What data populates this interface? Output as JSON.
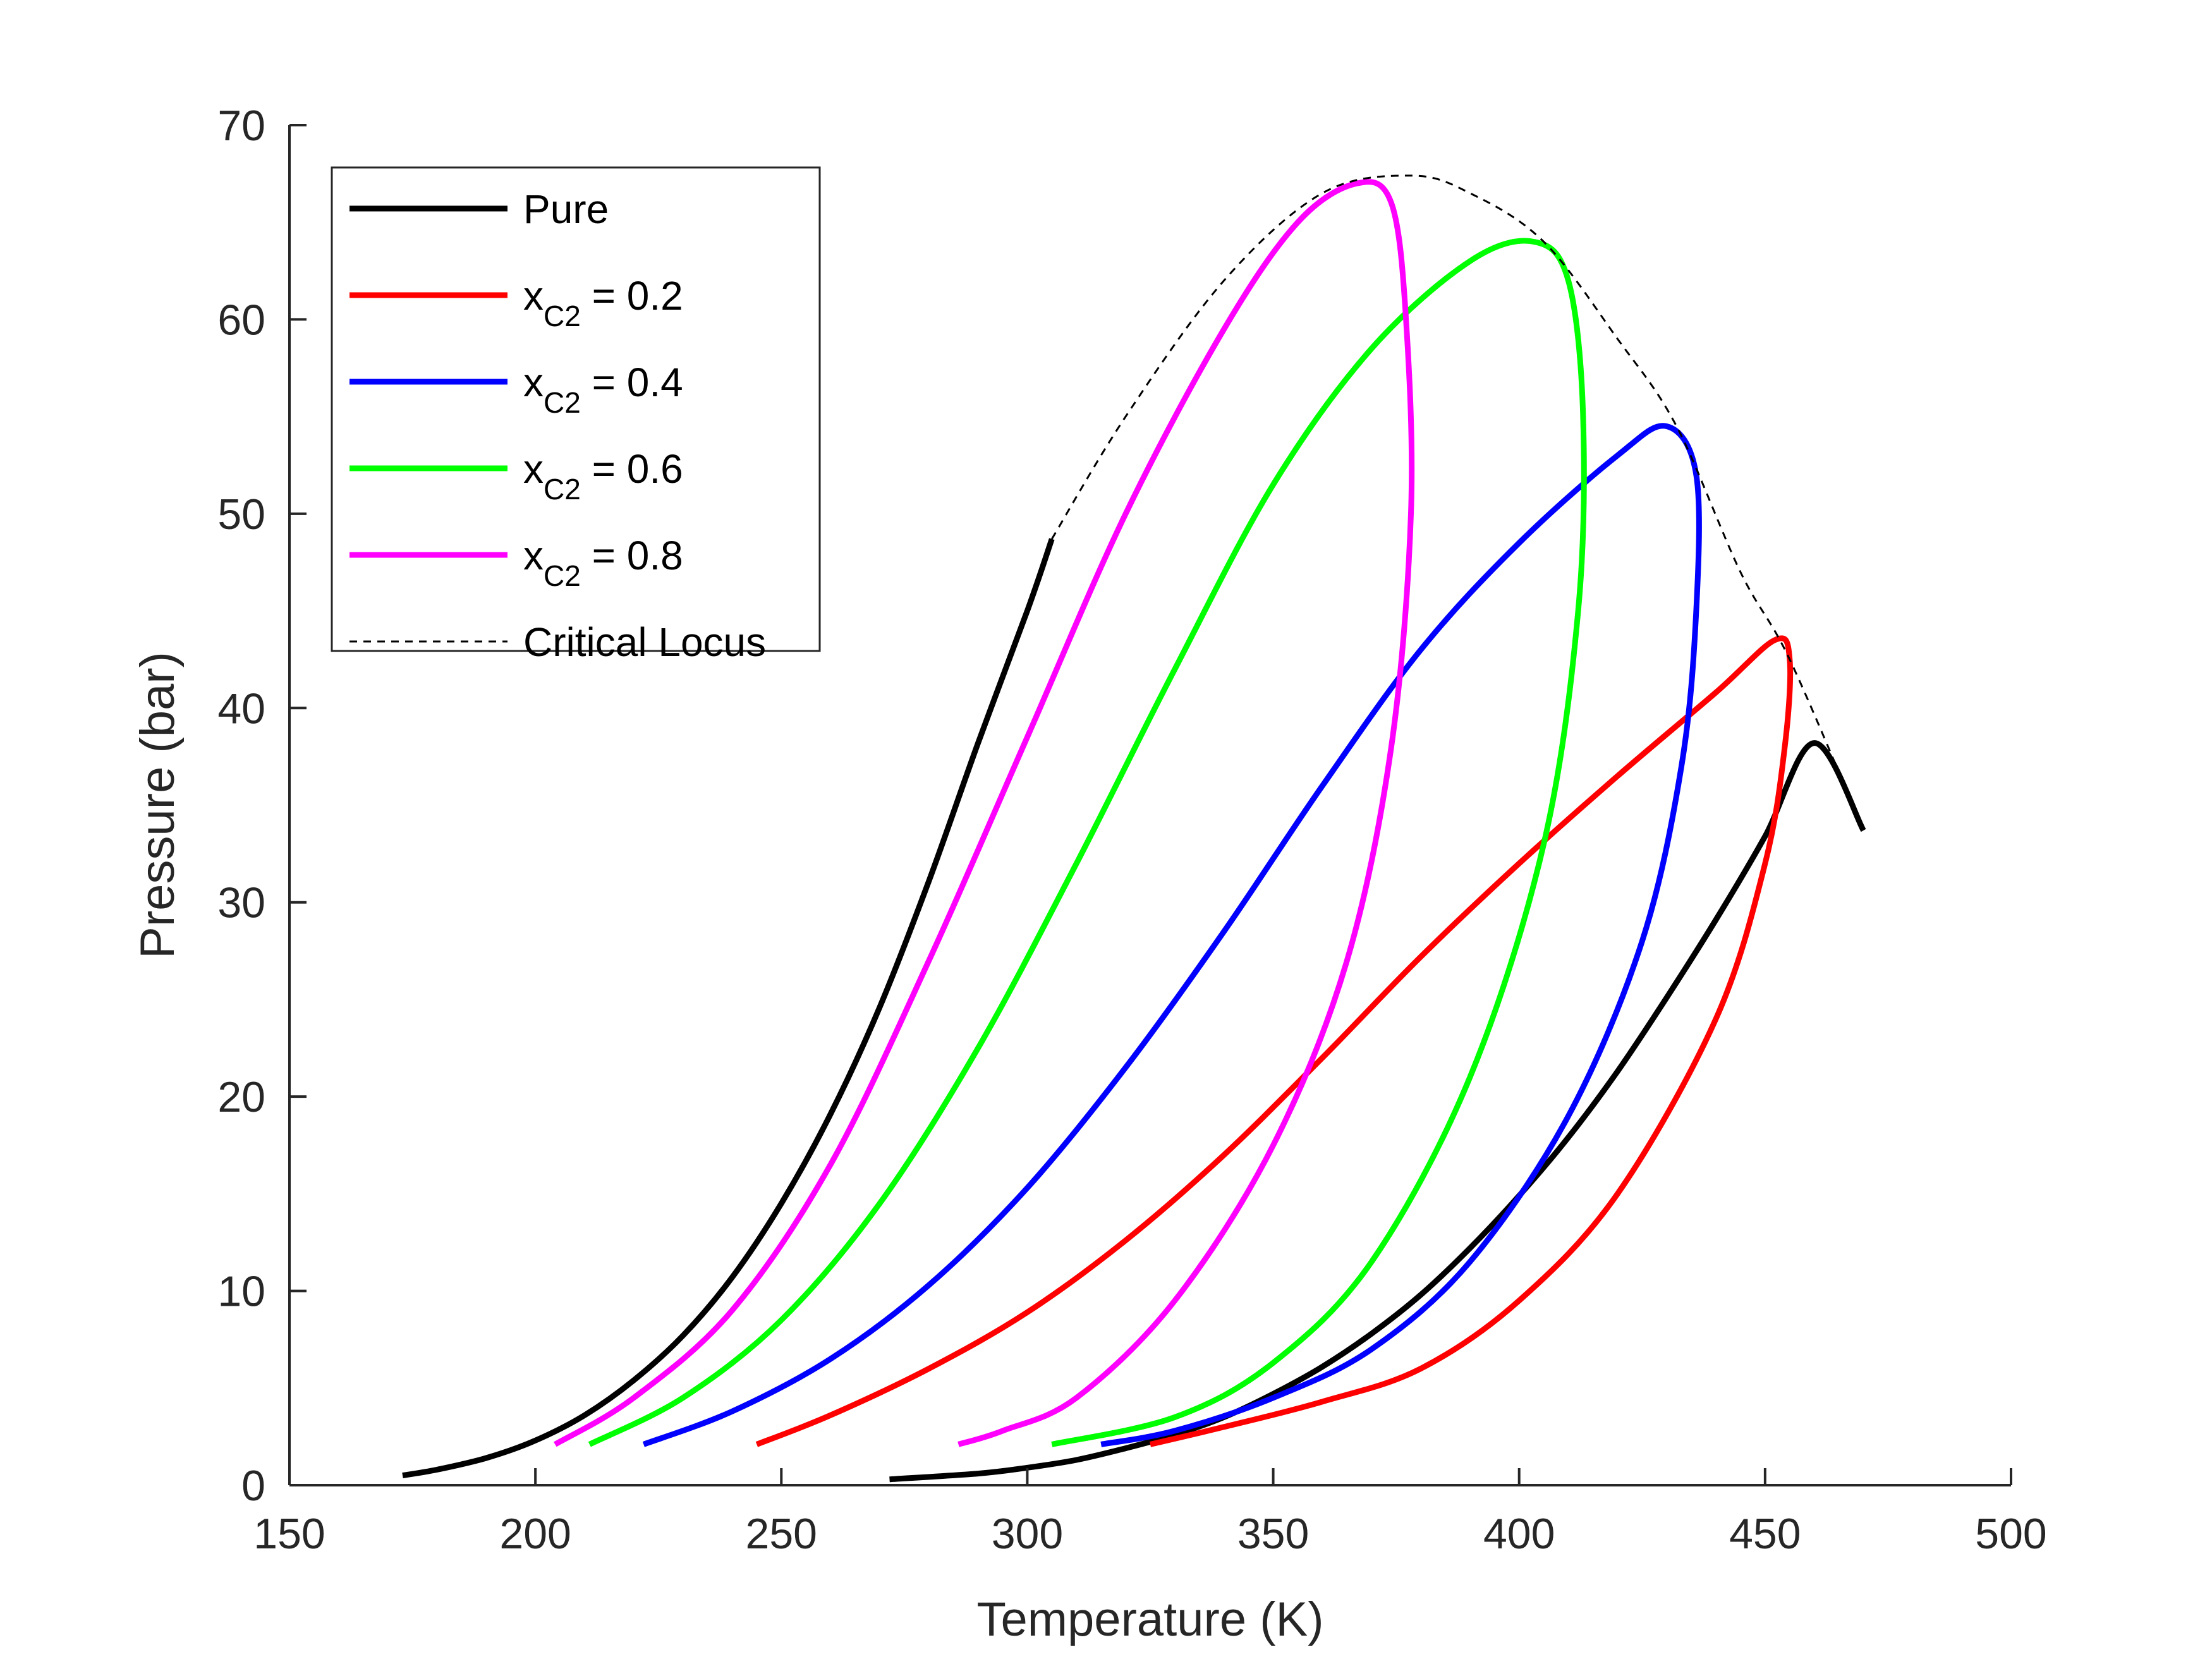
{
  "chart_data": {
    "type": "line",
    "title": "",
    "xlabel": "Temperature (K)",
    "ylabel": "Pressure (bar)",
    "xlim": [
      150,
      500
    ],
    "ylim": [
      0,
      70
    ],
    "xticks": [
      150,
      200,
      250,
      300,
      350,
      400,
      450,
      500
    ],
    "yticks": [
      0,
      10,
      20,
      30,
      40,
      50,
      60,
      70
    ],
    "xtick_labels": [
      "150",
      "200",
      "250",
      "300",
      "350",
      "400",
      "450",
      "500"
    ],
    "ytick_labels": [
      "0",
      "10",
      "20",
      "30",
      "40",
      "50",
      "60",
      "70"
    ],
    "grid": false,
    "legend_position": "top-left",
    "series": [
      {
        "name": "Pure",
        "color": "#000000",
        "style": "solid",
        "segments": [
          [
            [
              173,
              0.5
            ],
            [
              180,
              0.8
            ],
            [
              190,
              1.4
            ],
            [
              200,
              2.3
            ],
            [
              210,
              3.6
            ],
            [
              220,
              5.4
            ],
            [
              230,
              7.7
            ],
            [
              240,
              10.7
            ],
            [
              250,
              14.5
            ],
            [
              260,
              19.1
            ],
            [
              270,
              24.6
            ],
            [
              280,
              31.1
            ],
            [
              290,
              38.2
            ],
            [
              300,
              45.0
            ],
            [
              305,
              48.7
            ]
          ],
          [
            [
              272,
              0.3
            ],
            [
              290,
              0.6
            ],
            [
              300,
              0.9
            ],
            [
              310,
              1.3
            ],
            [
              320,
              1.9
            ],
            [
              330,
              2.6
            ],
            [
              340,
              3.5
            ],
            [
              350,
              4.7
            ],
            [
              360,
              6.1
            ],
            [
              370,
              7.8
            ],
            [
              380,
              9.8
            ],
            [
              390,
              12.2
            ],
            [
              400,
              14.9
            ],
            [
              410,
              17.9
            ],
            [
              420,
              21.3
            ],
            [
              430,
              25.1
            ],
            [
              440,
              29.1
            ],
            [
              450,
              33.4
            ],
            [
              460,
              38.2
            ],
            [
              470,
              33.7
            ]
          ]
        ]
      },
      {
        "name": "x_C2 = 0.2",
        "label_main": "x",
        "label_sub": "C2",
        "label_rest": " = 0.2",
        "color": "#ff0000",
        "style": "solid",
        "points": [
          [
            245,
            2.1
          ],
          [
            260,
            3.6
          ],
          [
            280,
            6.0
          ],
          [
            300,
            8.9
          ],
          [
            320,
            12.6
          ],
          [
            340,
            17.0
          ],
          [
            360,
            22.0
          ],
          [
            380,
            27.2
          ],
          [
            400,
            32.0
          ],
          [
            420,
            36.5
          ],
          [
            440,
            40.8
          ],
          [
            452,
            43.5
          ],
          [
            455,
            42.5
          ],
          [
            454,
            38.0
          ],
          [
            450,
            32.0
          ],
          [
            440,
            24.0
          ],
          [
            420,
            15.0
          ],
          [
            400,
            9.5
          ],
          [
            380,
            6.0
          ],
          [
            360,
            4.3
          ],
          [
            340,
            3.0
          ],
          [
            325,
            2.1
          ]
        ]
      },
      {
        "name": "x_C2 = 0.4",
        "label_main": "x",
        "label_sub": "C2",
        "label_rest": " = 0.4",
        "color": "#0000ff",
        "style": "solid",
        "points": [
          [
            222,
            2.1
          ],
          [
            240,
            3.8
          ],
          [
            260,
            6.5
          ],
          [
            280,
            10.3
          ],
          [
            300,
            15.3
          ],
          [
            320,
            21.5
          ],
          [
            340,
            28.5
          ],
          [
            360,
            36.0
          ],
          [
            380,
            43.0
          ],
          [
            400,
            48.5
          ],
          [
            420,
            53.0
          ],
          [
            430,
            54.5
          ],
          [
            436,
            52.0
          ],
          [
            436,
            45.0
          ],
          [
            433,
            37.0
          ],
          [
            425,
            28.0
          ],
          [
            410,
            19.0
          ],
          [
            390,
            11.5
          ],
          [
            370,
            7.0
          ],
          [
            350,
            4.5
          ],
          [
            330,
            2.8
          ],
          [
            315,
            2.1
          ]
        ]
      },
      {
        "name": "x_C2 = 0.6",
        "label_main": "x",
        "label_sub": "C2",
        "label_rest": " = 0.6",
        "color": "#00ff00",
        "style": "solid",
        "points": [
          [
            211,
            2.1
          ],
          [
            230,
            4.5
          ],
          [
            250,
            8.5
          ],
          [
            270,
            14.5
          ],
          [
            290,
            22.5
          ],
          [
            310,
            32.0
          ],
          [
            330,
            42.0
          ],
          [
            350,
            51.5
          ],
          [
            370,
            58.5
          ],
          [
            390,
            63.0
          ],
          [
            403,
            64.0
          ],
          [
            410,
            62.0
          ],
          [
            413,
            55.0
          ],
          [
            412,
            45.0
          ],
          [
            405,
            33.0
          ],
          [
            390,
            21.0
          ],
          [
            370,
            11.5
          ],
          [
            350,
            6.3
          ],
          [
            330,
            3.5
          ],
          [
            305,
            2.1
          ]
        ]
      },
      {
        "name": "x_C2 = 0.8",
        "label_main": "x",
        "label_sub": "C2",
        "label_rest": " = 0.8",
        "color": "#ff00ff",
        "style": "solid",
        "points": [
          [
            204,
            2.1
          ],
          [
            220,
            4.5
          ],
          [
            240,
            9.0
          ],
          [
            260,
            16.5
          ],
          [
            280,
            27.0
          ],
          [
            300,
            38.5
          ],
          [
            320,
            50.0
          ],
          [
            340,
            59.5
          ],
          [
            355,
            65.0
          ],
          [
            367,
            67.0
          ],
          [
            374,
            66.0
          ],
          [
            377,
            60.0
          ],
          [
            378,
            50.0
          ],
          [
            374,
            38.0
          ],
          [
            365,
            27.0
          ],
          [
            350,
            17.5
          ],
          [
            330,
            9.5
          ],
          [
            310,
            4.5
          ],
          [
            295,
            2.8
          ],
          [
            286,
            2.1
          ]
        ]
      },
      {
        "name": "Critical Locus",
        "color": "#000000",
        "style": "dashed",
        "points": [
          [
            305,
            48.7
          ],
          [
            320,
            55.0
          ],
          [
            340,
            62.0
          ],
          [
            360,
            66.5
          ],
          [
            378,
            67.4
          ],
          [
            390,
            66.5
          ],
          [
            405,
            64.0
          ],
          [
            420,
            59.0
          ],
          [
            432,
            54.5
          ],
          [
            445,
            47.0
          ],
          [
            455,
            42.5
          ],
          [
            470,
            33.7
          ]
        ]
      }
    ]
  }
}
